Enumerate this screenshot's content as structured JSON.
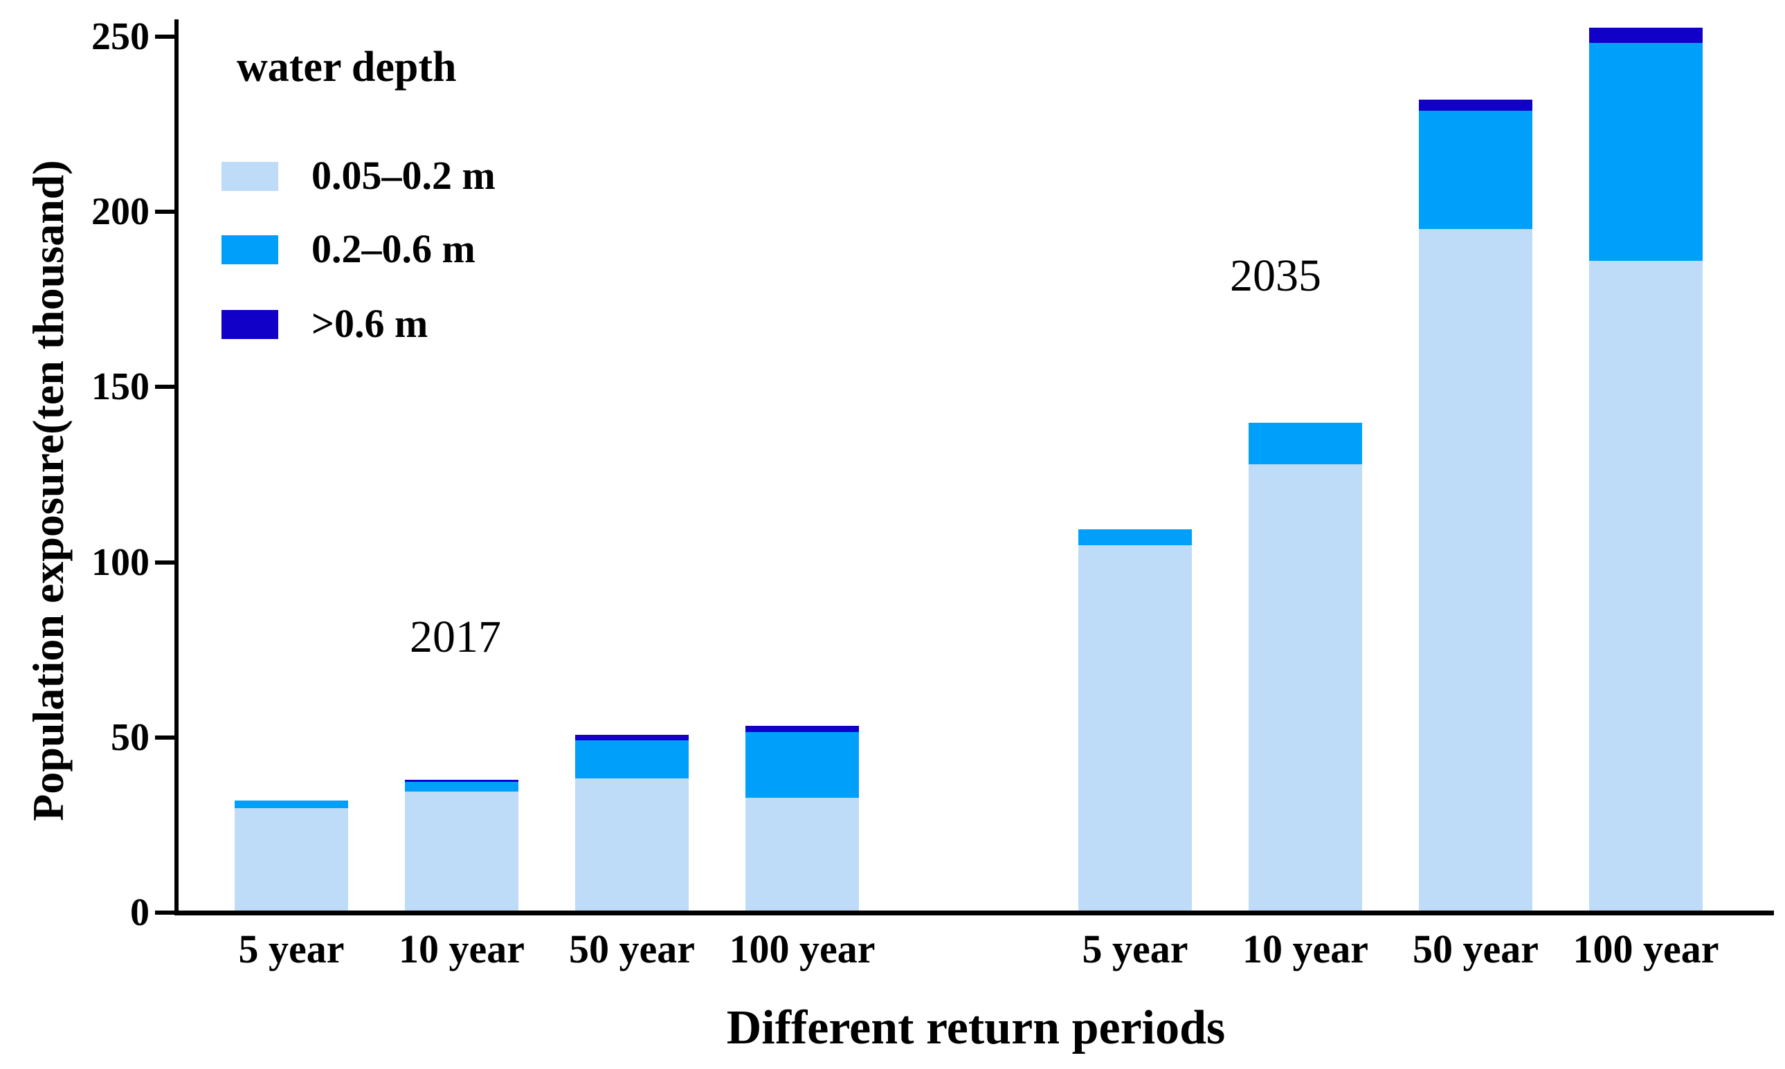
{
  "chart_data": {
    "type": "bar",
    "stacked": true,
    "title": "",
    "xlabel": "Different return periods",
    "ylabel": "Population exposure(ten thousand)",
    "ylim": [
      0,
      250
    ],
    "yticks": [
      0,
      50,
      100,
      150,
      200,
      250
    ],
    "grid": false,
    "legend_position": "upper left",
    "legend": {
      "title": "water depth",
      "entries": [
        {
          "label": "0.05–0.2 m",
          "color": "#BEDCF8"
        },
        {
          "label": "0.2–0.6 m",
          "color": "#00A0FA"
        },
        {
          "label": ">0.6 m",
          "color": "#1100C8"
        }
      ]
    },
    "groups": [
      {
        "year": "2017",
        "categories": [
          "5 year",
          "10 year",
          "50 year",
          "100 year"
        ],
        "series": [
          {
            "name": "0.05–0.2 m",
            "values": [
              29.2,
              34.0,
              37.7,
              32.2
            ]
          },
          {
            "name": "0.2–0.6 m",
            "values": [
              2.2,
              2.7,
              10.9,
              18.7
            ]
          },
          {
            "name": ">0.6 m",
            "values": [
              0,
              0.6,
              1.5,
              1.8
            ]
          }
        ],
        "totals": [
          31.4,
          37.3,
          50.1,
          52.7
        ]
      },
      {
        "year": "2035",
        "categories": [
          "5 year",
          "10 year",
          "50 year",
          "100 year"
        ],
        "series": [
          {
            "name": "0.05–0.2 m",
            "values": [
              104.3,
              127.3,
              194.6,
              185.4
            ]
          },
          {
            "name": "0.2–0.6 m",
            "values": [
              4.5,
              11.9,
              33.6,
              62.3
            ]
          },
          {
            "name": ">0.6 m",
            "values": [
              0,
              0,
              3.2,
              4.2
            ]
          }
        ],
        "totals": [
          108.8,
          139.2,
          231.4,
          251.9
        ]
      }
    ]
  }
}
